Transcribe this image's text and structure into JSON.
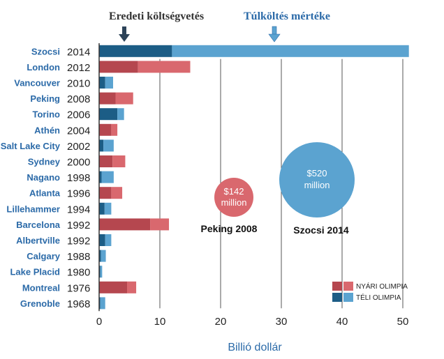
{
  "headers": {
    "original_cost": "Eredeti költségvetés",
    "overrun": "Túlköltés mértéke",
    "overrun_color": "#2b6aa8"
  },
  "colors": {
    "summer_original": "#b5474f",
    "summer_overrun": "#d9686e",
    "winter_original": "#1c5d86",
    "winter_overrun": "#5ba3d0",
    "city_text": "#2b6aa8",
    "axis": "#333333"
  },
  "bubbles": [
    {
      "value": "$142",
      "unit": "million",
      "caption": "Peking 2008",
      "color": "#d9686e"
    },
    {
      "value": "$520",
      "unit": "million",
      "caption": "Szocsi 2014",
      "color": "#5ba3d0"
    }
  ],
  "legend": {
    "summer": "NYÁRI OLIMPIA",
    "winter": "TÉLI OLIMPIA"
  },
  "chart_data": {
    "type": "bar",
    "orientation": "horizontal",
    "stacked": true,
    "xlabel": "Billió dollár",
    "xlim": [
      0,
      51
    ],
    "xticks": [
      0,
      10,
      20,
      30,
      40,
      50
    ],
    "categories": [
      {
        "city": "Szocsi",
        "year": "2014",
        "season": "winter",
        "original": 12.0,
        "overrun": 39.0
      },
      {
        "city": "London",
        "year": "2012",
        "season": "summer",
        "original": 6.4,
        "overrun": 8.6
      },
      {
        "city": "Vancouver",
        "year": "2010",
        "season": "winter",
        "original": 1.0,
        "overrun": 1.3
      },
      {
        "city": "Peking",
        "year": "2008",
        "season": "summer",
        "original": 2.7,
        "overrun": 2.9
      },
      {
        "city": "Torino",
        "year": "2006",
        "season": "winter",
        "original": 3.0,
        "overrun": 1.1
      },
      {
        "city": "Athén",
        "year": "2004",
        "season": "summer",
        "original": 2.0,
        "overrun": 1.0
      },
      {
        "city": "Salt Lake City",
        "year": "2002",
        "season": "winter",
        "original": 0.7,
        "overrun": 1.7
      },
      {
        "city": "Sydney",
        "year": "2000",
        "season": "summer",
        "original": 2.2,
        "overrun": 2.1
      },
      {
        "city": "Nagano",
        "year": "1998",
        "season": "winter",
        "original": 0.4,
        "overrun": 2.0
      },
      {
        "city": "Atlanta",
        "year": "1996",
        "season": "summer",
        "original": 2.0,
        "overrun": 1.8
      },
      {
        "city": "Lillehammer",
        "year": "1994",
        "season": "winter",
        "original": 0.9,
        "overrun": 1.1
      },
      {
        "city": "Barcelona",
        "year": "1992",
        "season": "summer",
        "original": 8.4,
        "overrun": 3.1
      },
      {
        "city": "Albertville",
        "year": "1992",
        "season": "winter",
        "original": 1.0,
        "overrun": 1.0
      },
      {
        "city": "Calgary",
        "year": "1988",
        "season": "winter",
        "original": 0.3,
        "overrun": 0.8
      },
      {
        "city": "Lake Placid",
        "year": "1980",
        "season": "winter",
        "original": 0.2,
        "overrun": 0.3
      },
      {
        "city": "Montreal",
        "year": "1976",
        "season": "summer",
        "original": 4.6,
        "overrun": 1.5
      },
      {
        "city": "Grenoble",
        "year": "1968",
        "season": "winter",
        "original": 0.2,
        "overrun": 0.8
      }
    ]
  }
}
